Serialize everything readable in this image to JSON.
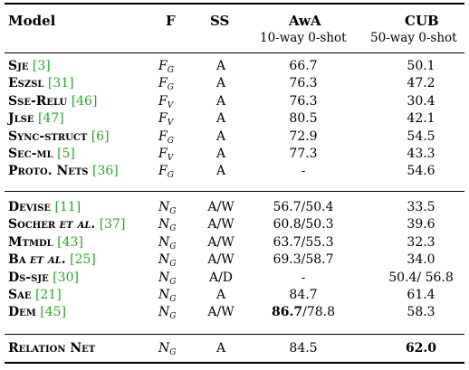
{
  "header": {
    "model": "Model",
    "f": "F",
    "ss": "SS",
    "awa": "AwA",
    "awa_sub": "10-way 0-shot",
    "cub": "CUB",
    "cub_sub": "50-way 0-shot"
  },
  "groups": [
    {
      "rows": [
        {
          "name": "Sje",
          "ref": "[3]",
          "f_main": "F",
          "f_sub": "G",
          "ss": "A",
          "awa": "66.7",
          "cub": "50.1"
        },
        {
          "name": "Eszsl",
          "ref": "[31]",
          "f_main": "F",
          "f_sub": "G",
          "ss": "A",
          "awa": "76.3",
          "cub": "47.2"
        },
        {
          "name": "Sse-Relu",
          "ref": "[46]",
          "f_main": "F",
          "f_sub": "V",
          "ss": "A",
          "awa": "76.3",
          "cub": "30.4"
        },
        {
          "name": "Jlse",
          "ref": "[47]",
          "f_main": "F",
          "f_sub": "V",
          "ss": "A",
          "awa": "80.5",
          "cub": "42.1"
        },
        {
          "name": "Sync-struct",
          "ref": "[6]",
          "f_main": "F",
          "f_sub": "G",
          "ss": "A",
          "awa": "72.9",
          "cub": "54.5"
        },
        {
          "name": "Sec-ml",
          "ref": "[5]",
          "f_main": "F",
          "f_sub": "V",
          "ss": "A",
          "awa": "77.3",
          "cub": "43.3"
        },
        {
          "name": "Proto. Nets",
          "ref": "[36]",
          "f_main": "F",
          "f_sub": "G",
          "ss": "A",
          "awa": "-",
          "cub": "54.6"
        }
      ]
    },
    {
      "rows": [
        {
          "name": "Devise",
          "ref": "[11]",
          "f_main": "N",
          "f_sub": "G",
          "ss": "A/W",
          "awa": "56.7/50.4",
          "cub": "33.5"
        },
        {
          "name": "Socher",
          "name_it": "et al.",
          "ref": "[37]",
          "f_main": "N",
          "f_sub": "G",
          "ss": "A/W",
          "awa": "60.8/50.3",
          "cub": "39.6"
        },
        {
          "name": "Mtmdl",
          "ref": "[43]",
          "f_main": "N",
          "f_sub": "G",
          "ss": "A/W",
          "awa": "63.7/55.3",
          "cub": "32.3"
        },
        {
          "name": "Ba",
          "name_it": "et al.",
          "ref": "[25]",
          "f_main": "N",
          "f_sub": "G",
          "ss": "A/W",
          "awa": "69.3/58.7",
          "cub": "34.0"
        },
        {
          "name": "Ds-sje",
          "ref": "[30]",
          "f_main": "N",
          "f_sub": "G",
          "ss": "A/D",
          "awa": "-",
          "cub": "50.4/ 56.8"
        },
        {
          "name": "Sae",
          "ref": "[21]",
          "f_main": "N",
          "f_sub": "G",
          "ss": "A",
          "awa": "84.7",
          "cub": "61.4"
        },
        {
          "name": "Dem",
          "ref": "[45]",
          "f_main": "N",
          "f_sub": "G",
          "ss": "A/W",
          "awa_bold": "86.7",
          "awa": "/78.8",
          "cub": "58.3"
        }
      ]
    },
    {
      "rows": [
        {
          "name": "Relation Net",
          "f_main": "N",
          "f_sub": "G",
          "ss": "A",
          "awa": "84.5",
          "cub_bold": "62.0"
        }
      ]
    }
  ]
}
